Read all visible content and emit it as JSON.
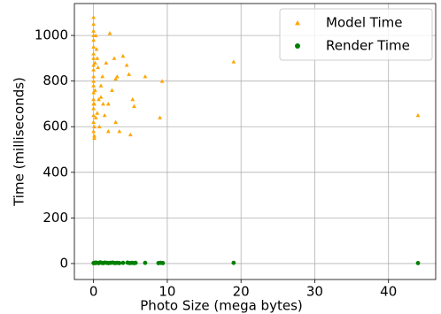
{
  "chart_data": {
    "type": "scatter",
    "xlabel": "Photo Size (mega bytes)",
    "ylabel": "Time (milliseconds)",
    "xlim": [
      -2.6,
      46.4
    ],
    "ylim": [
      -70,
      1140
    ],
    "xticks": [
      0,
      10,
      20,
      30,
      40
    ],
    "yticks": [
      0,
      200,
      400,
      600,
      800,
      1000
    ],
    "grid": true,
    "legend": "upper right",
    "series": [
      {
        "name": "Model Time",
        "color": "#ffa500",
        "marker": "triangle",
        "x": [
          0,
          0,
          0,
          0,
          0,
          0,
          0,
          0,
          0,
          0,
          0,
          0,
          0,
          0,
          0,
          0,
          0,
          0,
          0,
          0,
          0.1,
          0.1,
          0.1,
          0.1,
          0.2,
          0.2,
          0.3,
          0.3,
          0.4,
          0.5,
          0.6,
          0.7,
          0.8,
          1.0,
          1.2,
          1.3,
          1.5,
          1.7,
          2.0,
          2.2,
          2.5,
          2.8,
          3.0,
          3.2,
          3.5,
          4.0,
          4.5,
          4.8,
          5.0,
          5.3,
          5.5,
          7.0,
          9.0,
          9.3,
          19.0,
          44.0,
          0.5,
          1.0,
          2.0,
          3.0
        ],
        "values": [
          1080,
          1050,
          1020,
          1000,
          980,
          950,
          920,
          900,
          870,
          850,
          820,
          800,
          780,
          750,
          720,
          700,
          680,
          650,
          620,
          580,
          560,
          550,
          600,
          700,
          760,
          880,
          640,
          1000,
          940,
          900,
          860,
          720,
          600,
          780,
          820,
          700,
          650,
          880,
          700,
          1010,
          760,
          900,
          620,
          820,
          580,
          910,
          870,
          830,
          565,
          720,
          690,
          820,
          640,
          800,
          885,
          650,
          660,
          730,
          580,
          810
        ]
      },
      {
        "name": "Render Time",
        "color": "#008000",
        "marker": "circle",
        "x": [
          0,
          0.1,
          0.2,
          0.3,
          0.5,
          0.7,
          0.9,
          1.1,
          1.3,
          1.5,
          1.8,
          2.0,
          2.3,
          2.6,
          2.9,
          3.2,
          3.5,
          4.0,
          4.6,
          4.9,
          5.2,
          5.5,
          5.7,
          7.0,
          8.8,
          9.1,
          9.4,
          19.0,
          44.0
        ],
        "values": [
          2,
          3,
          2,
          4,
          3,
          2,
          5,
          3,
          2,
          4,
          3,
          2,
          3,
          4,
          2,
          3,
          2,
          3,
          4,
          2,
          3,
          2,
          3,
          3,
          2,
          3,
          2,
          3,
          2
        ]
      }
    ]
  }
}
